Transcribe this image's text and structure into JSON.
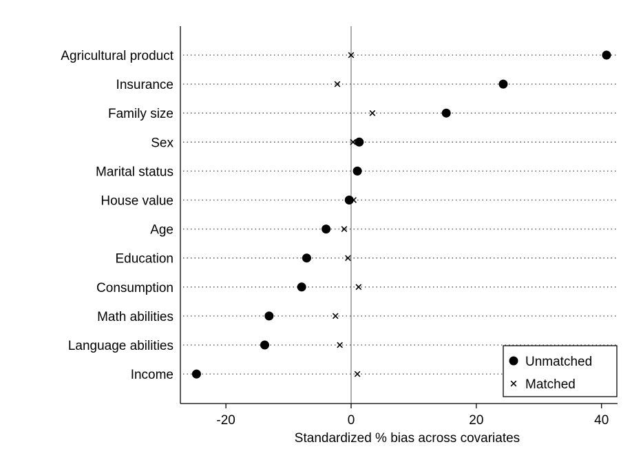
{
  "chart_data": {
    "type": "scatter",
    "title": "",
    "xlabel": "Standardized % bias across covariates",
    "ylabel": "",
    "xlim": [
      -27,
      43
    ],
    "xticks": [
      -20,
      0,
      20,
      40
    ],
    "xtick_labels": [
      "-20",
      "0",
      "20",
      "40"
    ],
    "grid": "horizontal dotted lines per covariate",
    "reference_line_x": 0,
    "legend_position": "bottom-right",
    "categories": [
      "Agricultural product",
      "Insurance",
      "Family size",
      "Sex",
      "Marital status",
      "House value",
      "Age",
      "Education",
      "Consumption",
      "Math abilities",
      "Language abilities",
      "Income"
    ],
    "series": [
      {
        "name": "Unmatched",
        "marker": "filled-circle",
        "color": "#000000",
        "values": [
          40.8,
          24.3,
          15.2,
          1.3,
          1.0,
          -0.3,
          -4.0,
          -7.1,
          -7.9,
          -13.1,
          -13.8,
          -24.7
        ]
      },
      {
        "name": "Matched",
        "marker": "x",
        "color": "#000000",
        "values": [
          0.0,
          -2.2,
          3.4,
          0.3,
          1.0,
          0.4,
          -1.1,
          -0.5,
          1.2,
          -2.5,
          -1.8,
          1.0
        ]
      }
    ]
  }
}
